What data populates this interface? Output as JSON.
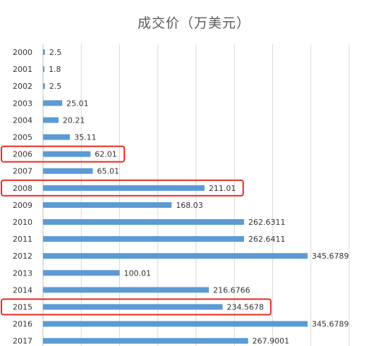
{
  "chart_data": {
    "type": "bar",
    "orientation": "horizontal",
    "title": "成交价（万美元）",
    "categories": [
      "2000",
      "2001",
      "2002",
      "2003",
      "2004",
      "2005",
      "2006",
      "2007",
      "2008",
      "2009",
      "2010",
      "2011",
      "2012",
      "2013",
      "2014",
      "2015",
      "2016",
      "2017"
    ],
    "values": [
      2.5,
      1.8,
      2.5,
      25.01,
      20.21,
      35.11,
      62.01,
      65.01,
      211.01,
      168.03,
      262.6311,
      262.6411,
      345.6789,
      100.01,
      216.6766,
      234.5678,
      345.6789,
      267.9001
    ],
    "value_labels": [
      "2.5",
      "1.8",
      "2.5",
      "25.01",
      "20.21",
      "35.11",
      "62.01",
      "65.01",
      "211.01",
      "168.03",
      "262.6311",
      "262.6411",
      "345.6789",
      "100.01",
      "216.6766",
      "234.5678",
      "345.6789",
      "267.9001"
    ],
    "xlim": [
      0,
      400
    ],
    "grid": true,
    "bar_color": "#5b9bd5",
    "highlighted_categories": [
      "2006",
      "2008",
      "2015"
    ],
    "highlight_color": "#e8281e"
  }
}
